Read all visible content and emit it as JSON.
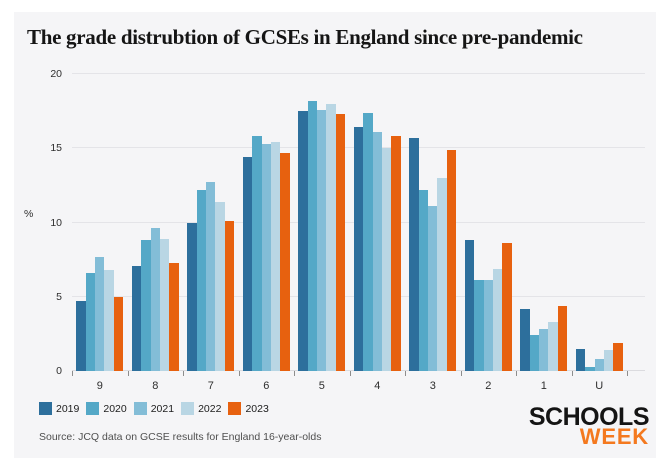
{
  "title": "The grade distrubtion of GCSEs in England since pre-pandemic",
  "ylabel": "%",
  "source": "Source: JCQ data on GCSE results for England 16-year-olds",
  "logo": {
    "line1": "SCHOOLS",
    "line2": "WEEK"
  },
  "colors": {
    "card_bg": "#f5f5f7",
    "gridline": "#e4e4e8",
    "logo_black": "#141414",
    "logo_orange": "#f4791f"
  },
  "chart_data": {
    "type": "bar",
    "title": "The grade distrubtion of GCSEs in England since pre-pandemic",
    "xlabel": "",
    "ylabel": "%",
    "categories": [
      "9",
      "8",
      "7",
      "6",
      "5",
      "4",
      "3",
      "2",
      "1",
      "U"
    ],
    "series": [
      {
        "name": "2019",
        "color": "#2d6f9c",
        "values": [
          4.7,
          7.1,
          10.0,
          14.4,
          17.5,
          16.4,
          15.7,
          8.8,
          4.2,
          1.5
        ]
      },
      {
        "name": "2020",
        "color": "#54a8c7",
        "values": [
          6.6,
          8.8,
          12.2,
          15.8,
          18.2,
          17.4,
          12.2,
          6.1,
          2.4,
          0.3
        ]
      },
      {
        "name": "2021",
        "color": "#83bdd7",
        "values": [
          7.7,
          9.6,
          12.7,
          15.3,
          17.6,
          16.1,
          11.1,
          6.1,
          2.8,
          0.8
        ]
      },
      {
        "name": "2022",
        "color": "#b9d6e4",
        "values": [
          6.8,
          8.9,
          11.4,
          15.4,
          18.0,
          15.0,
          13.0,
          6.9,
          3.3,
          1.4
        ]
      },
      {
        "name": "2023",
        "color": "#e7610f",
        "values": [
          5.0,
          7.3,
          10.1,
          14.7,
          17.3,
          15.8,
          14.9,
          8.6,
          4.4,
          1.9
        ]
      }
    ],
    "ylim": [
      0,
      20
    ],
    "yticks": [
      0,
      5,
      10,
      15,
      20
    ],
    "grid": true,
    "legend_position": "bottom-left"
  }
}
